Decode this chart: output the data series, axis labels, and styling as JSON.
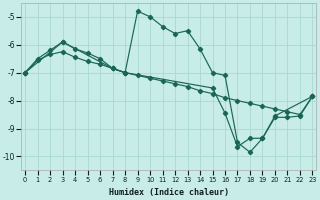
{
  "bg_color": "#c8ece8",
  "line_color": "#1a6655",
  "grid_color": "#aad8d2",
  "xlim": [
    -0.3,
    23.3
  ],
  "ylim": [
    -10.5,
    -4.5
  ],
  "yticks": [
    -10,
    -9,
    -8,
    -7,
    -6,
    -5
  ],
  "xticks": [
    0,
    1,
    2,
    3,
    4,
    5,
    6,
    7,
    8,
    9,
    10,
    11,
    12,
    13,
    14,
    15,
    16,
    17,
    18,
    19,
    20,
    21,
    22,
    23
  ],
  "xlabel": "Humidex (Indice chaleur)",
  "line1_x": [
    0,
    1,
    2,
    3,
    4,
    5,
    6,
    7,
    8,
    9,
    10,
    11,
    12,
    13,
    14,
    15,
    16,
    17,
    18,
    19,
    20,
    21,
    22,
    23
  ],
  "line1_y": [
    -7.0,
    -6.5,
    -6.2,
    -5.9,
    -6.15,
    -6.3,
    -6.5,
    -6.85,
    -7.0,
    -4.8,
    -5.0,
    -5.35,
    -5.6,
    -5.5,
    -6.15,
    -7.0,
    -7.1,
    -9.5,
    -9.85,
    -9.35,
    -8.6,
    -8.6,
    -8.55,
    -7.85
  ],
  "line2_x": [
    0,
    3,
    7,
    8,
    15,
    16,
    17,
    18,
    19,
    20,
    23
  ],
  "line2_y": [
    -7.0,
    -5.9,
    -6.85,
    -7.0,
    -7.55,
    -8.45,
    -9.65,
    -9.35,
    -9.35,
    -8.55,
    -7.85
  ],
  "line3_x": [
    0,
    1,
    2,
    3,
    4,
    5,
    6,
    7,
    8,
    9,
    10,
    11,
    12,
    13,
    14,
    15,
    16,
    17,
    18,
    19,
    20,
    21,
    22,
    23
  ],
  "line3_y": [
    -7.0,
    -6.55,
    -6.35,
    -6.25,
    -6.45,
    -6.6,
    -6.7,
    -6.85,
    -7.0,
    -7.1,
    -7.2,
    -7.3,
    -7.4,
    -7.5,
    -7.65,
    -7.75,
    -7.9,
    -8.0,
    -8.1,
    -8.2,
    -8.3,
    -8.4,
    -8.5,
    -7.85
  ]
}
